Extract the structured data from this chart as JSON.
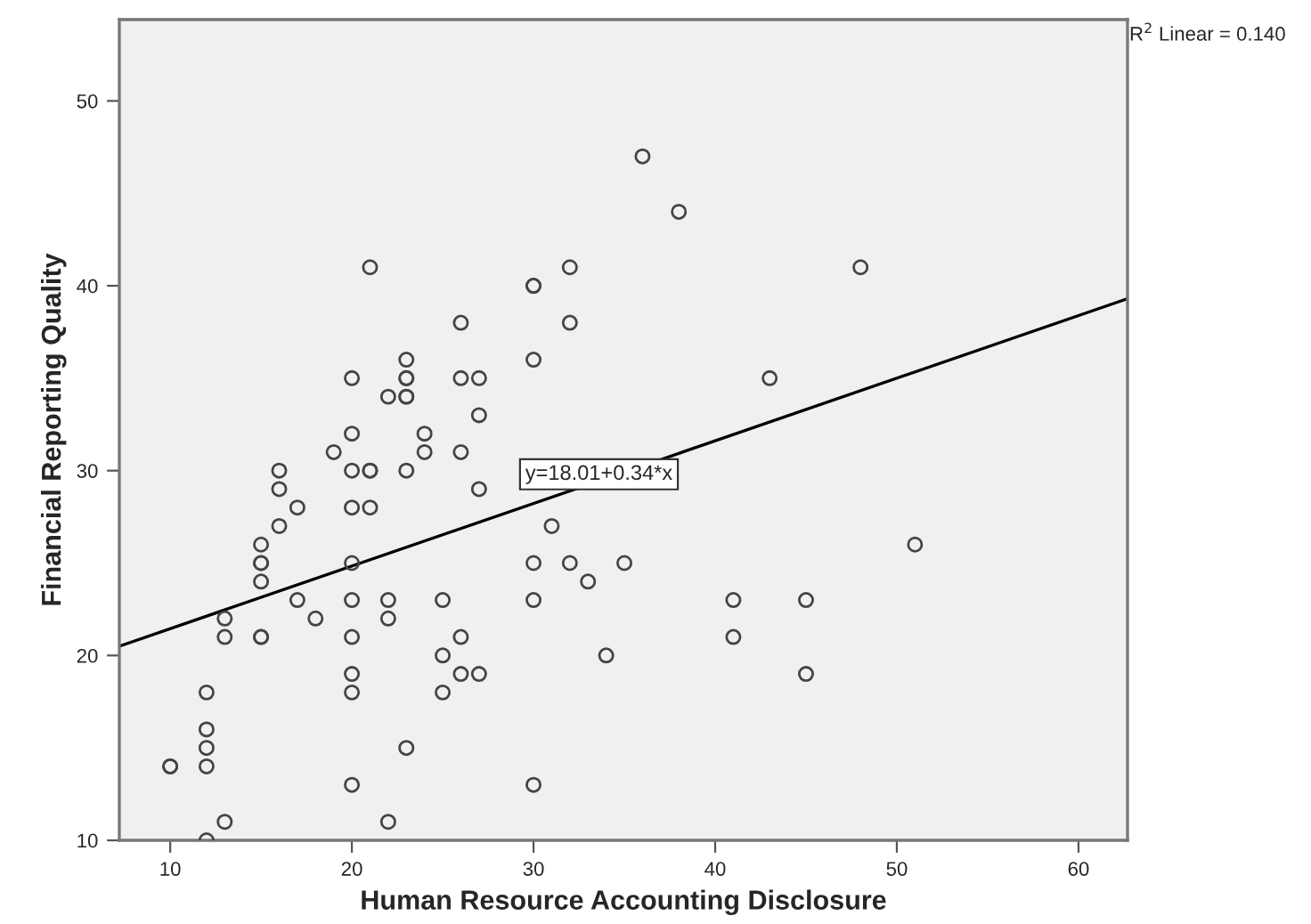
{
  "chart_data": {
    "type": "scatter",
    "xlabel": "Human Resource Accounting Disclosure",
    "ylabel": "Financial Reporting Quality",
    "xlim": [
      7.2,
      62.7
    ],
    "ylim": [
      10,
      54.4
    ],
    "xticks": [
      10,
      20,
      30,
      40,
      50,
      60
    ],
    "yticks": [
      10,
      20,
      30,
      40,
      50
    ],
    "grid": false,
    "legend": false,
    "series": [
      {
        "color": "#444444",
        "marker": "circle",
        "x": [
          10,
          10,
          12,
          12,
          12,
          12,
          12,
          13,
          13,
          13,
          15,
          15,
          15,
          15,
          15,
          15,
          16,
          16,
          16,
          17,
          17,
          18,
          19,
          20,
          20,
          20,
          20,
          20,
          20,
          20,
          20,
          20,
          20,
          21,
          21,
          21,
          21,
          22,
          22,
          22,
          22,
          23,
          23,
          23,
          23,
          23,
          23,
          23,
          24,
          24,
          25,
          25,
          25,
          26,
          26,
          26,
          26,
          26,
          27,
          27,
          27,
          27,
          30,
          30,
          30,
          30,
          30,
          30,
          31,
          32,
          32,
          32,
          33,
          34,
          35,
          36,
          38,
          41,
          41,
          43,
          45,
          45,
          48,
          51
        ],
        "values": [
          14,
          14,
          18,
          16,
          15,
          14,
          10,
          22,
          21,
          11,
          26,
          25,
          25,
          24,
          21,
          21,
          30,
          29,
          27,
          28,
          23,
          22,
          31,
          35,
          32,
          30,
          28,
          25,
          23,
          21,
          19,
          18,
          13,
          41,
          30,
          30,
          28,
          34,
          23,
          22,
          11,
          36,
          35,
          35,
          34,
          34,
          30,
          15,
          32,
          31,
          23,
          20,
          18,
          38,
          35,
          31,
          21,
          19,
          35,
          33,
          29,
          19,
          40,
          40,
          36,
          25,
          23,
          13,
          27,
          41,
          38,
          25,
          24,
          20,
          25,
          47,
          44,
          23,
          21,
          35,
          23,
          19,
          41,
          26
        ]
      },
      {
        "type": "line",
        "color": "#000000",
        "marker": "none",
        "line_style": "solid",
        "x": [
          7.2,
          62.7
        ],
        "values": [
          20.5,
          39.3
        ]
      }
    ],
    "annotations": [
      {
        "text": "y=18.01+0.34*x",
        "x": 33.6,
        "y": 29.8
      },
      "R$^{2}$ Linear = 0.140"
    ]
  }
}
